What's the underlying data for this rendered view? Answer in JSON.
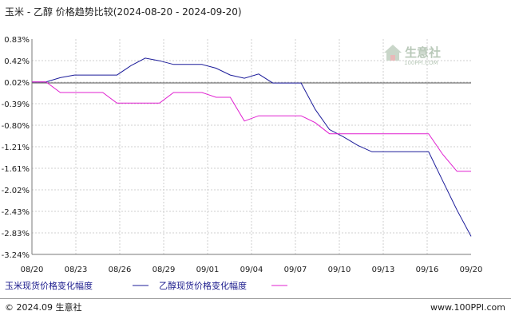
{
  "chart_data": {
    "type": "line",
    "title": "玉米 - 乙醇 价格趋势比较(2024-08-20 - 2024-09-20)",
    "xlabel": "",
    "ylabel": "",
    "x_ticks": [
      "08/20",
      "08/23",
      "08/26",
      "08/29",
      "09/01",
      "09/04",
      "09/07",
      "09/10",
      "09/13",
      "09/16",
      "09/20"
    ],
    "y_ticks": [
      "0.83%",
      "0.42%",
      "0.02%",
      "-0.39%",
      "-0.80%",
      "-1.21%",
      "-1.61%",
      "-2.02%",
      "-2.43%",
      "-2.83%",
      "-3.24%"
    ],
    "ylim": [
      -3.24,
      0.83
    ],
    "x_start": "2024-08-20",
    "grid": true,
    "legend_position": "bottom",
    "series": [
      {
        "name": "玉米现货价格变化幅度",
        "color": "#1c1c9a",
        "points": [
          [
            "2024-08-20",
            0.02
          ],
          [
            "2024-08-21",
            0.02
          ],
          [
            "2024-08-22",
            0.1
          ],
          [
            "2024-08-23",
            0.15
          ],
          [
            "2024-08-24",
            0.15
          ],
          [
            "2024-08-25",
            0.15
          ],
          [
            "2024-08-26",
            0.15
          ],
          [
            "2024-08-27",
            0.33
          ],
          [
            "2024-08-28",
            0.47
          ],
          [
            "2024-08-29",
            0.42
          ],
          [
            "2024-08-30",
            0.35
          ],
          [
            "2024-08-31",
            0.35
          ],
          [
            "2024-09-01",
            0.35
          ],
          [
            "2024-09-02",
            0.28
          ],
          [
            "2024-09-03",
            0.15
          ],
          [
            "2024-09-04",
            0.09
          ],
          [
            "2024-09-05",
            0.17
          ],
          [
            "2024-09-06",
            0.0
          ],
          [
            "2024-09-07",
            0.0
          ],
          [
            "2024-09-08",
            0.0
          ],
          [
            "2024-09-09",
            -0.5
          ],
          [
            "2024-09-10",
            -0.88
          ],
          [
            "2024-09-11",
            -1.02
          ],
          [
            "2024-09-12",
            -1.18
          ],
          [
            "2024-09-13",
            -1.3
          ],
          [
            "2024-09-14",
            -1.3
          ],
          [
            "2024-09-15",
            -1.3
          ],
          [
            "2024-09-16",
            -1.3
          ],
          [
            "2024-09-17",
            -1.3
          ],
          [
            "2024-09-18",
            -1.85
          ],
          [
            "2024-09-19",
            -2.4
          ],
          [
            "2024-09-20",
            -2.9
          ]
        ]
      },
      {
        "name": "乙醇现货价格变化幅度",
        "color": "#e020d0",
        "points": [
          [
            "2024-08-20",
            0.02
          ],
          [
            "2024-08-21",
            0.02
          ],
          [
            "2024-08-22",
            -0.18
          ],
          [
            "2024-08-23",
            -0.18
          ],
          [
            "2024-08-24",
            -0.18
          ],
          [
            "2024-08-25",
            -0.18
          ],
          [
            "2024-08-26",
            -0.38
          ],
          [
            "2024-08-27",
            -0.38
          ],
          [
            "2024-08-28",
            -0.38
          ],
          [
            "2024-08-29",
            -0.38
          ],
          [
            "2024-08-30",
            -0.18
          ],
          [
            "2024-08-31",
            -0.18
          ],
          [
            "2024-09-01",
            -0.18
          ],
          [
            "2024-09-02",
            -0.27
          ],
          [
            "2024-09-03",
            -0.27
          ],
          [
            "2024-09-04",
            -0.72
          ],
          [
            "2024-09-05",
            -0.62
          ],
          [
            "2024-09-06",
            -0.62
          ],
          [
            "2024-09-07",
            -0.62
          ],
          [
            "2024-09-08",
            -0.62
          ],
          [
            "2024-09-09",
            -0.75
          ],
          [
            "2024-09-10",
            -0.96
          ],
          [
            "2024-09-11",
            -0.96
          ],
          [
            "2024-09-12",
            -0.96
          ],
          [
            "2024-09-13",
            -0.96
          ],
          [
            "2024-09-14",
            -0.96
          ],
          [
            "2024-09-15",
            -0.96
          ],
          [
            "2024-09-16",
            -0.96
          ],
          [
            "2024-09-17",
            -0.96
          ],
          [
            "2024-09-18",
            -1.35
          ],
          [
            "2024-09-19",
            -1.67
          ],
          [
            "2024-09-20",
            -1.67
          ]
        ]
      }
    ]
  },
  "watermark": {
    "name": "生意社",
    "url": "100PPI.COM"
  },
  "footer": {
    "copyright": "© 2024.09 生意社",
    "url": "www.100PPI.com"
  }
}
